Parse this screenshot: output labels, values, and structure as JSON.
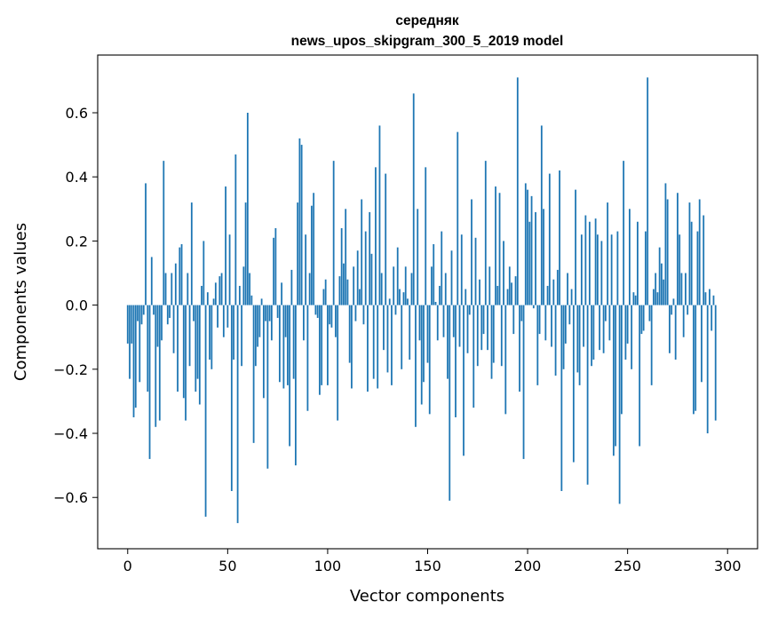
{
  "chart_data": {
    "type": "bar",
    "title": "середняк\nnews_upos_skipgram_300_5_2019 model",
    "title_lines": [
      "середняк",
      "news_upos_skipgram_300_5_2019 model"
    ],
    "xlabel": "Vector components",
    "ylabel": "Components values",
    "xlim": [
      -15,
      315
    ],
    "ylim": [
      -0.76,
      0.78
    ],
    "xticks": [
      0,
      50,
      100,
      150,
      200,
      250,
      300
    ],
    "yticks": [
      -0.6,
      -0.4,
      -0.2,
      0.0,
      0.2,
      0.4,
      0.6
    ],
    "ytick_labels": [
      "−0.6",
      "−0.4",
      "−0.2",
      "0.0",
      "0.2",
      "0.4",
      "0.6"
    ],
    "bar_color": "#1f77b4",
    "grid": false,
    "values": [
      -0.12,
      -0.23,
      -0.12,
      -0.35,
      -0.32,
      -0.05,
      -0.24,
      -0.06,
      -0.03,
      0.38,
      -0.27,
      -0.48,
      0.15,
      -0.03,
      -0.38,
      -0.13,
      -0.36,
      -0.11,
      0.45,
      0.1,
      -0.06,
      -0.04,
      0.1,
      -0.15,
      0.13,
      -0.27,
      0.18,
      0.19,
      -0.29,
      -0.36,
      0.1,
      -0.19,
      0.32,
      -0.05,
      -0.27,
      -0.23,
      -0.31,
      0.06,
      0.2,
      -0.66,
      0.04,
      -0.17,
      -0.2,
      0.02,
      0.07,
      -0.07,
      0.09,
      0.1,
      -0.1,
      0.37,
      -0.07,
      0.22,
      -0.58,
      -0.17,
      0.47,
      -0.68,
      0.06,
      -0.19,
      0.12,
      0.32,
      0.6,
      0.1,
      0.03,
      -0.43,
      -0.19,
      -0.13,
      -0.1,
      0.02,
      -0.29,
      -0.05,
      -0.51,
      -0.05,
      -0.11,
      0.21,
      0.24,
      -0.04,
      -0.24,
      0.07,
      -0.26,
      -0.1,
      -0.25,
      -0.44,
      0.11,
      -0.23,
      -0.5,
      0.32,
      0.52,
      0.5,
      -0.11,
      0.22,
      -0.33,
      0.1,
      0.31,
      0.35,
      -0.03,
      -0.04,
      -0.28,
      -0.25,
      0.05,
      0.08,
      -0.25,
      -0.06,
      -0.07,
      0.45,
      -0.1,
      -0.36,
      0.09,
      0.24,
      0.13,
      0.3,
      0.08,
      -0.18,
      -0.26,
      0.12,
      -0.05,
      0.17,
      0.05,
      0.33,
      -0.06,
      0.23,
      -0.27,
      0.29,
      0.16,
      -0.23,
      0.43,
      -0.26,
      0.56,
      0.1,
      -0.14,
      0.41,
      -0.21,
      0.02,
      -0.25,
      0.12,
      -0.03,
      0.18,
      0.05,
      -0.2,
      0.04,
      0.12,
      0.02,
      -0.17,
      0.1,
      0.66,
      -0.38,
      0.3,
      -0.11,
      -0.31,
      -0.24,
      0.43,
      -0.18,
      -0.34,
      0.12,
      0.19,
      0.01,
      -0.11,
      0.06,
      0.23,
      -0.1,
      0.1,
      -0.23,
      -0.61,
      0.17,
      -0.1,
      -0.35,
      0.54,
      -0.13,
      0.22,
      -0.47,
      0.05,
      -0.15,
      -0.03,
      0.33,
      -0.32,
      0.21,
      -0.19,
      0.08,
      -0.14,
      -0.09,
      0.45,
      -0.14,
      0.12,
      -0.23,
      -0.18,
      0.37,
      0.06,
      0.35,
      -0.19,
      0.2,
      -0.34,
      0.05,
      0.12,
      0.07,
      -0.09,
      0.09,
      0.71,
      -0.27,
      -0.05,
      -0.48,
      0.38,
      0.36,
      0.26,
      0.34,
      -0.01,
      0.29,
      -0.25,
      -0.09,
      0.56,
      0.3,
      -0.11,
      0.06,
      0.41,
      -0.13,
      0.08,
      -0.22,
      0.11,
      0.42,
      -0.58,
      -0.2,
      -0.12,
      0.1,
      -0.06,
      0.05,
      -0.49,
      0.36,
      -0.21,
      -0.25,
      0.22,
      -0.13,
      0.28,
      -0.56,
      0.26,
      -0.19,
      -0.17,
      0.27,
      0.22,
      -0.14,
      0.2,
      -0.15,
      -0.05,
      0.32,
      -0.11,
      0.22,
      -0.47,
      -0.44,
      0.23,
      -0.62,
      -0.34,
      0.45,
      -0.17,
      -0.12,
      0.3,
      -0.2,
      0.04,
      0.03,
      0.26,
      -0.44,
      -0.09,
      -0.08,
      0.23,
      0.71,
      -0.05,
      -0.25,
      0.05,
      0.1,
      0.04,
      0.18,
      0.13,
      0.08,
      0.38,
      0.33,
      -0.15,
      -0.03,
      0.02,
      -0.17,
      0.35,
      0.22,
      0.1,
      -0.1,
      0.1,
      -0.03,
      0.32,
      0.26,
      -0.34,
      -0.33,
      0.23,
      0.33,
      -0.24,
      0.28,
      0.04,
      -0.4,
      0.05,
      -0.08,
      0.03,
      -0.36
    ]
  }
}
